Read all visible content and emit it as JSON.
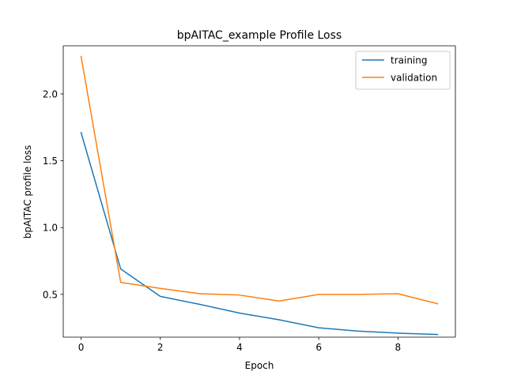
{
  "chart_data": {
    "type": "line",
    "title": "bpAITAC_example  Profile Loss",
    "xlabel": "Epoch",
    "ylabel": "bpAITAC profile loss",
    "x": [
      0,
      1,
      2,
      3,
      4,
      5,
      6,
      7,
      8,
      9
    ],
    "xlim": [
      -0.45,
      9.45
    ],
    "ylim": [
      0.18,
      2.36
    ],
    "xticks": [
      0,
      2,
      4,
      6,
      8
    ],
    "yticks": [
      0.5,
      1.0,
      1.5,
      2.0
    ],
    "xtick_labels": [
      "0",
      "2",
      "4",
      "6",
      "8"
    ],
    "ytick_labels": [
      "0.5",
      "1.0",
      "1.5",
      "2.0"
    ],
    "grid": false,
    "legend_position": "top-right",
    "series": [
      {
        "name": "training",
        "color": "#1f77b4",
        "values": [
          1.71,
          0.69,
          0.485,
          0.425,
          0.36,
          0.31,
          0.25,
          0.225,
          0.21,
          0.2
        ]
      },
      {
        "name": "validation",
        "color": "#ff7f0e",
        "values": [
          2.28,
          0.59,
          0.545,
          0.505,
          0.495,
          0.45,
          0.5,
          0.5,
          0.505,
          0.43
        ]
      }
    ]
  }
}
